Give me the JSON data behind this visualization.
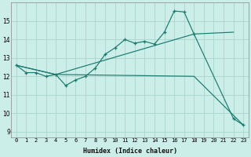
{
  "xlabel": "Humidex (Indice chaleur)",
  "bg_color": "#cceee8",
  "grid_color": "#aad4cc",
  "line_color": "#1a7a6e",
  "xlim": [
    -0.5,
    23.5
  ],
  "ylim": [
    8.7,
    16.0
  ],
  "yticks": [
    9,
    10,
    11,
    12,
    13,
    14,
    15
  ],
  "xticks": [
    0,
    1,
    2,
    3,
    4,
    5,
    6,
    7,
    8,
    9,
    10,
    11,
    12,
    13,
    14,
    15,
    16,
    17,
    18,
    19,
    20,
    21,
    22,
    23
  ],
  "series": [
    {
      "x": [
        0,
        1,
        2,
        3,
        4,
        5,
        6,
        7,
        8,
        9,
        10,
        11,
        12,
        13,
        14,
        15,
        16,
        17,
        18,
        22,
        23
      ],
      "y": [
        12.6,
        12.2,
        12.2,
        12.0,
        12.1,
        11.5,
        11.8,
        12.0,
        12.45,
        13.2,
        13.55,
        14.0,
        13.8,
        13.9,
        13.75,
        14.4,
        15.55,
        15.5,
        14.3,
        9.7,
        9.35
      ],
      "linestyle": "-",
      "marker": true
    },
    {
      "x": [
        0,
        4,
        18,
        22
      ],
      "y": [
        12.6,
        12.1,
        14.3,
        14.4
      ],
      "linestyle": "-",
      "marker": false
    },
    {
      "x": [
        0,
        4,
        18,
        23
      ],
      "y": [
        12.6,
        12.1,
        12.0,
        9.35
      ],
      "linestyle": "-",
      "marker": false
    }
  ]
}
